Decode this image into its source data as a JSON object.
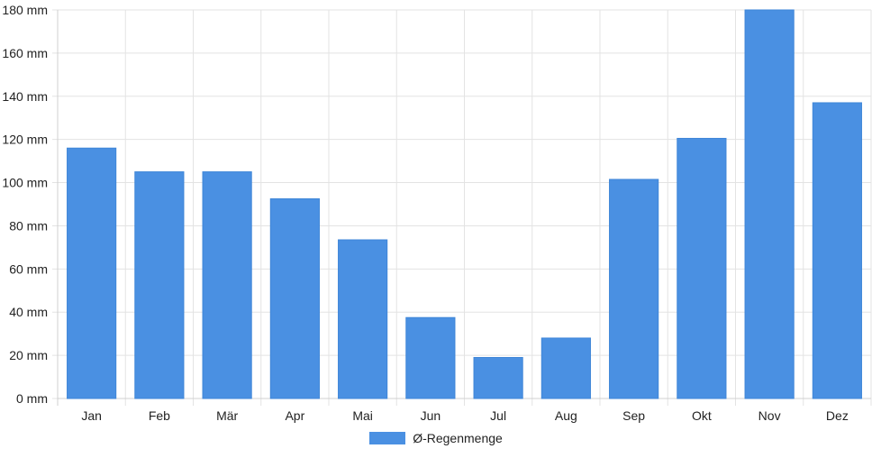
{
  "chart_data": {
    "type": "bar",
    "title": "",
    "xlabel": "",
    "ylabel": "",
    "categories": [
      "Jan",
      "Feb",
      "Mär",
      "Apr",
      "Mai",
      "Jun",
      "Jul",
      "Aug",
      "Sep",
      "Okt",
      "Nov",
      "Dez"
    ],
    "series": [
      {
        "name": "Ø-Regenmenge",
        "values": [
          116,
          105,
          105,
          92.5,
          73.5,
          37.5,
          19,
          28,
          101.5,
          120.5,
          180,
          137
        ],
        "color": "#4a90e2"
      }
    ],
    "ylim": [
      0,
      180
    ],
    "yticks": [
      "0 mm",
      "20 mm",
      "40 mm",
      "60 mm",
      "80 mm",
      "100 mm",
      "120 mm",
      "140 mm",
      "160 mm",
      "180 mm"
    ],
    "grid": true,
    "legend_position": "bottom"
  }
}
